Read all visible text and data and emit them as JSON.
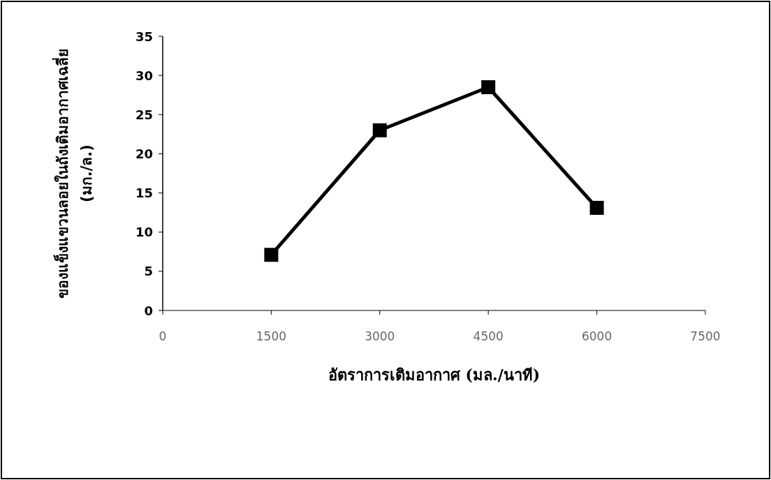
{
  "chart_data": {
    "type": "line",
    "xlabel": "อัตราการเติมอากาศ (มล./นาที)",
    "ylabel": "ของแข็งแขวนลอยในถังเติมอากาศเฉลี่ย\n(มก./ล.)",
    "x": [
      1500,
      3000,
      4500,
      6000
    ],
    "series": [
      {
        "color": "#000000",
        "values": [
          7.1,
          23.0,
          28.5,
          13.1
        ]
      }
    ],
    "xlim": [
      0,
      7500
    ],
    "xticks": [
      0,
      1500,
      3000,
      4500,
      6000,
      7500
    ],
    "ylim": [
      0,
      35
    ],
    "yticks": [
      0,
      5,
      10,
      15,
      20,
      25,
      30,
      35
    ],
    "marker": "square",
    "line_style": "solid",
    "grid": false
  }
}
